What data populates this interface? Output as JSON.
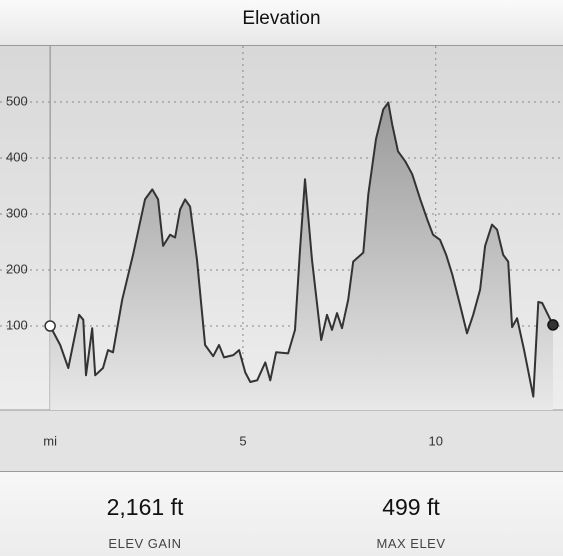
{
  "header": {
    "title": "Elevation"
  },
  "chart_data": {
    "type": "area",
    "x": [
      0,
      0.26,
      0.47,
      0.75,
      0.86,
      0.93,
      1.09,
      1.17,
      1.37,
      1.5,
      1.63,
      1.87,
      2.15,
      2.46,
      2.65,
      2.8,
      2.93,
      3.11,
      3.24,
      3.37,
      3.5,
      3.63,
      3.81,
      4.02,
      4.23,
      4.38,
      4.51,
      4.75,
      4.9,
      5.06,
      5.19,
      5.37,
      5.58,
      5.71,
      5.86,
      6.17,
      6.35,
      6.48,
      6.61,
      6.79,
      7.03,
      7.18,
      7.31,
      7.44,
      7.57,
      7.73,
      7.86,
      8.12,
      8.25,
      8.45,
      8.64,
      8.77,
      8.87,
      9.02,
      9.21,
      9.39,
      9.6,
      9.78,
      9.93,
      10.11,
      10.27,
      10.43,
      10.63,
      10.81,
      10.97,
      11.15,
      11.28,
      11.46,
      11.59,
      11.75,
      11.88,
      11.98,
      12.11,
      12.29,
      12.53,
      12.66,
      12.76,
      12.91,
      13.04
    ],
    "values": [
      100,
      66,
      25,
      120,
      111,
      12,
      96,
      12,
      25,
      57,
      53,
      147,
      227,
      326,
      344,
      326,
      243,
      263,
      258,
      308,
      326,
      313,
      218,
      66,
      46,
      66,
      44,
      48,
      57,
      17,
      0,
      3,
      35,
      3,
      53,
      51,
      93,
      236,
      362,
      218,
      75,
      120,
      93,
      123,
      96,
      147,
      215,
      231,
      335,
      434,
      487,
      499,
      460,
      412,
      394,
      371,
      326,
      290,
      263,
      254,
      227,
      192,
      138,
      87,
      120,
      165,
      243,
      281,
      272,
      227,
      215,
      98,
      114,
      57,
      -26,
      143,
      141,
      120,
      102
    ],
    "color": "#333333",
    "xlim": [
      -1.3,
      13.3
    ],
    "xticks": [
      {
        "value": 0,
        "label": "mi"
      },
      5,
      10
    ],
    "ylim": [
      -50,
      600
    ],
    "yticks": [
      100,
      200,
      300,
      400,
      500
    ],
    "grid": true
  },
  "stats": [
    {
      "value": "2,161 ft",
      "label": "ELEV GAIN"
    },
    {
      "value": "499 ft",
      "label": "MAX ELEV"
    }
  ]
}
